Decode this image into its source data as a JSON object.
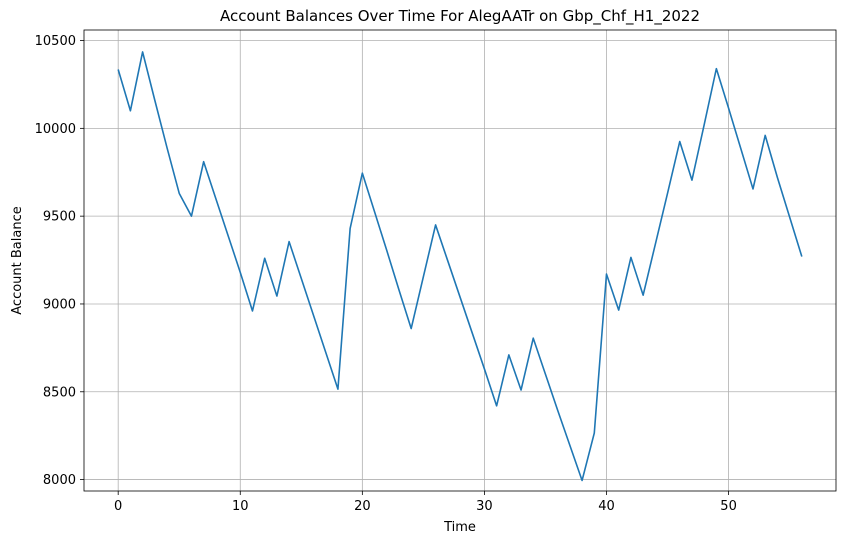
{
  "chart_data": {
    "type": "line",
    "title": "Account Balances Over Time For AlegAATr on Gbp_Chf_H1_2022",
    "xlabel": "Time",
    "ylabel": "Account Balance",
    "xlim": [
      -2.8,
      58.8
    ],
    "ylim": [
      7935,
      10560
    ],
    "xticks": [
      0,
      10,
      20,
      30,
      40,
      50
    ],
    "yticks": [
      8000,
      8500,
      9000,
      9500,
      10000,
      10500
    ],
    "grid": true,
    "line_color": "#1f77b4",
    "series": [
      {
        "x": [
          0,
          1,
          2,
          3,
          4,
          5,
          6,
          7,
          8,
          9,
          10,
          11,
          12,
          13,
          14,
          15,
          16,
          17,
          18,
          19,
          20,
          21,
          22,
          23,
          24,
          25,
          26,
          27,
          28,
          29,
          30,
          31,
          32,
          33,
          34,
          35,
          36,
          37,
          38,
          39,
          40,
          41,
          42,
          43,
          44,
          45,
          46,
          47,
          48,
          49,
          50,
          51,
          52,
          53,
          54,
          55,
          56
        ],
        "values": [
          10335,
          10100,
          10435,
          10160,
          9890,
          9630,
          9500,
          9810,
          9600,
          9390,
          9180,
          8960,
          9260,
          9045,
          9355,
          9145,
          8935,
          8725,
          8515,
          9430,
          9745,
          9525,
          9305,
          9080,
          8860,
          9155,
          9450,
          9245,
          9040,
          8835,
          8630,
          8420,
          8710,
          8510,
          8805,
          8600,
          8395,
          8195,
          7995,
          8265,
          9170,
          8965,
          9265,
          9050,
          9340,
          9630,
          9925,
          9705,
          10020,
          10340,
          10115,
          9885,
          9655,
          9960,
          9720,
          9495,
          9270
        ]
      }
    ]
  }
}
